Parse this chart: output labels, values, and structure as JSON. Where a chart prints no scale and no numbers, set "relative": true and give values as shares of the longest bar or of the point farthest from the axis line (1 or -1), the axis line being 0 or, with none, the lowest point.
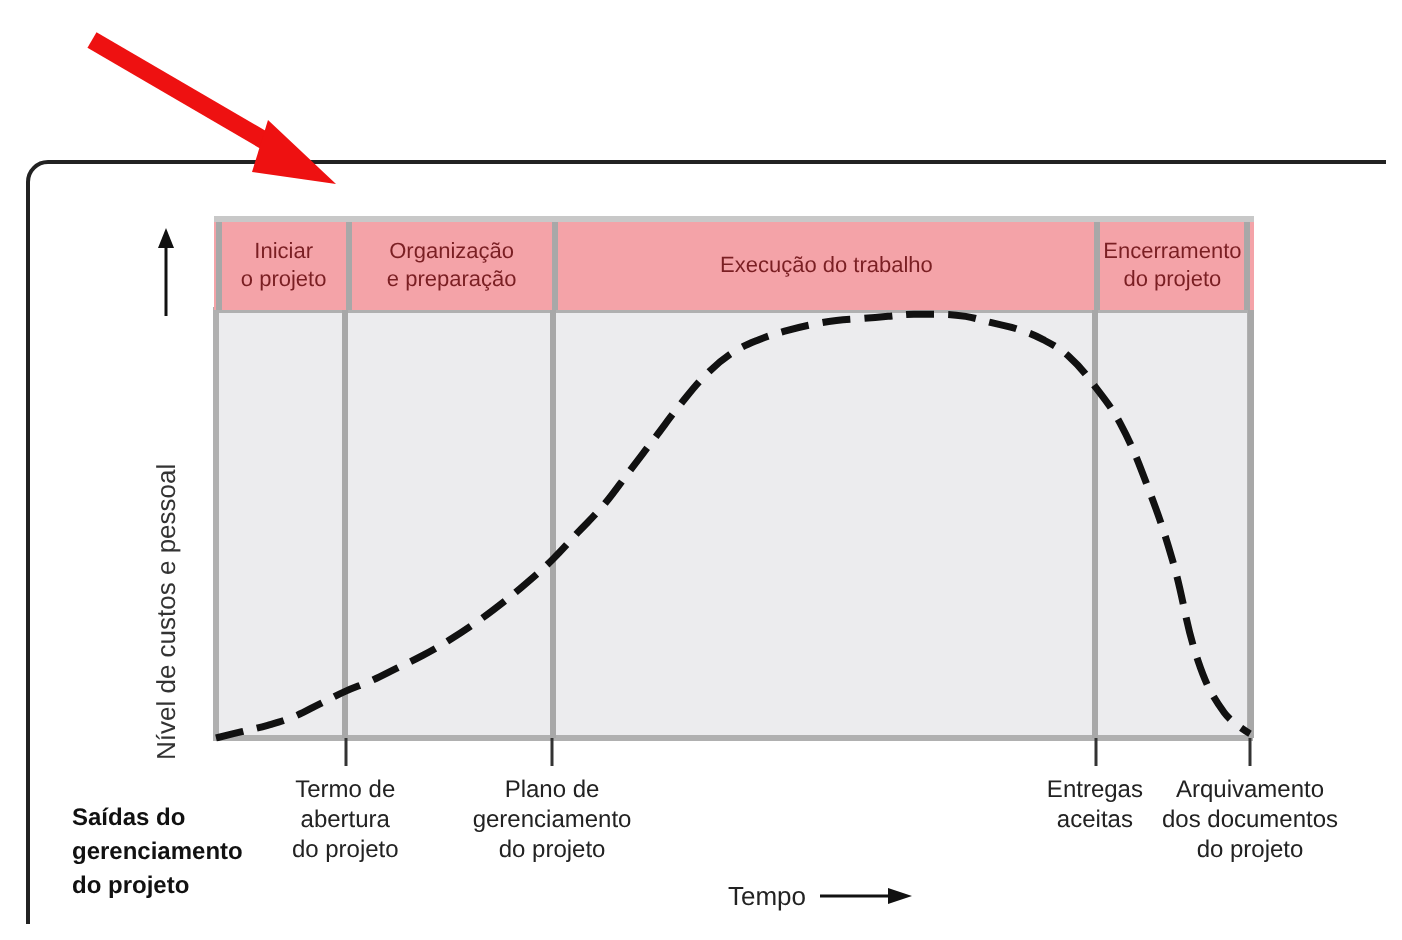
{
  "chart_data": {
    "type": "line",
    "relative": true,
    "xlabel": "Tempo",
    "ylabel": "Nível de custos e pessoal",
    "annotations": [
      "Saídas do\ngerenciamento\ndo projeto",
      "Iniciar\no projeto",
      "Organização\ne preparação",
      "Execução do trabalho",
      "Encerramento\ndo projeto"
    ],
    "categories": [
      null,
      null,
      null,
      null,
      null,
      "Termo de\nabertura\ndo projeto",
      null,
      null,
      null,
      null,
      null,
      null,
      null,
      "Plano de\ngerenciamento\ndo projeto",
      null,
      null,
      null,
      null,
      null,
      null,
      null,
      null,
      null,
      null,
      null,
      null,
      null,
      null,
      null,
      null,
      null,
      null,
      null,
      null,
      "Entregas\naceitas",
      null,
      null,
      null,
      null,
      null,
      "Arquivamento\ndos documentos\ndo projeto"
    ],
    "values": [
      0.0,
      0.015,
      0.03,
      0.05,
      0.08,
      0.11,
      0.135,
      0.165,
      0.195,
      0.23,
      0.27,
      0.315,
      0.365,
      0.42,
      0.485,
      0.55,
      0.63,
      0.71,
      0.79,
      0.86,
      0.91,
      0.94,
      0.96,
      0.975,
      0.985,
      0.99,
      0.995,
      1.0,
      1.0,
      0.995,
      0.98,
      0.965,
      0.94,
      0.9,
      0.83,
      0.74,
      0.6,
      0.42,
      0.18,
      0.06,
      0.01
    ],
    "color": "#111111",
    "line_style": "dashed",
    "marker": "none",
    "grid": "x"
  }
}
